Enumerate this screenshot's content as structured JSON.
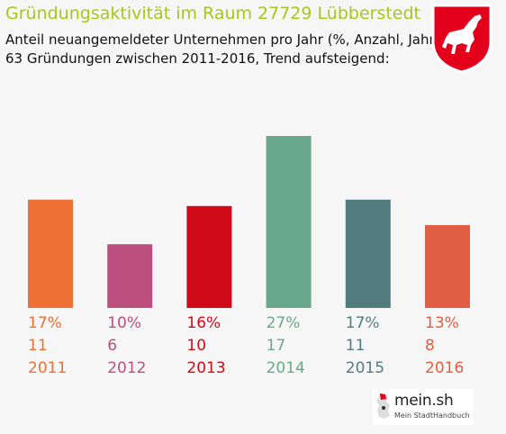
{
  "header": {
    "title": "Gründungsaktivität im Raum 27729 Lübberstedt",
    "subtitle_line1": "Anteil neuangemeldeter Unternehmen pro Jahr (%, Anzahl, Jahr)",
    "subtitle_line2": "63 Gründungen zwischen 2011-2016, Trend aufsteigend:"
  },
  "emblem": {
    "icon": "lower-saxony-horse-crest-icon",
    "colors": {
      "field": "#e2001a",
      "horse": "#ffffff"
    }
  },
  "chart_data": {
    "type": "bar",
    "title": "Gründungsaktivität im Raum 27729 Lübberstedt",
    "categories": [
      "2011",
      "2012",
      "2013",
      "2014",
      "2015",
      "2016"
    ],
    "series": [
      {
        "values": [
          17,
          10,
          16,
          27,
          17,
          13
        ],
        "unit": "%"
      }
    ],
    "counts": [
      11,
      6,
      10,
      17,
      11,
      8
    ],
    "percent_labels": [
      "17%",
      "10%",
      "16%",
      "27%",
      "17%",
      "13%"
    ],
    "colors": [
      "#ee7034",
      "#bd4f7e",
      "#d10a1a",
      "#6aa88d",
      "#537c7e",
      "#e05e44"
    ],
    "ylim": [
      0,
      27
    ],
    "grid": false,
    "legend": "none"
  },
  "footer": {
    "logo_text": "mein.sh",
    "logo_sub": "Mein StadtHandbuch",
    "logo_icon": "germany-map-icon"
  }
}
